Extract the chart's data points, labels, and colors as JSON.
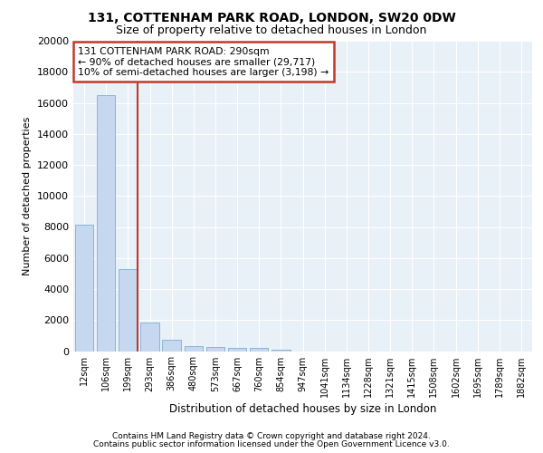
{
  "title1": "131, COTTENHAM PARK ROAD, LONDON, SW20 0DW",
  "title2": "Size of property relative to detached houses in London",
  "xlabel": "Distribution of detached houses by size in London",
  "ylabel": "Number of detached properties",
  "categories": [
    "12sqm",
    "106sqm",
    "199sqm",
    "293sqm",
    "386sqm",
    "480sqm",
    "573sqm",
    "667sqm",
    "760sqm",
    "854sqm",
    "947sqm",
    "1041sqm",
    "1134sqm",
    "1228sqm",
    "1321sqm",
    "1415sqm",
    "1508sqm",
    "1602sqm",
    "1695sqm",
    "1789sqm",
    "1882sqm"
  ],
  "values": [
    8150,
    16500,
    5300,
    1850,
    750,
    340,
    270,
    220,
    190,
    100,
    0,
    0,
    0,
    0,
    0,
    0,
    0,
    0,
    0,
    0,
    0
  ],
  "bar_color": "#c5d8f0",
  "bar_edge_color": "#7bafd4",
  "vline_color": "#c0392b",
  "annotation_text": "131 COTTENHAM PARK ROAD: 290sqm\n← 90% of detached houses are smaller (29,717)\n10% of semi-detached houses are larger (3,198) →",
  "annotation_box_edge_color": "#c0392b",
  "ylim": [
    0,
    20000
  ],
  "yticks": [
    0,
    2000,
    4000,
    6000,
    8000,
    10000,
    12000,
    14000,
    16000,
    18000,
    20000
  ],
  "plot_bg_color": "#e8f0f8",
  "figure_bg_color": "#ffffff",
  "grid_color": "#ffffff",
  "footer1": "Contains HM Land Registry data © Crown copyright and database right 2024.",
  "footer2": "Contains public sector information licensed under the Open Government Licence v3.0."
}
